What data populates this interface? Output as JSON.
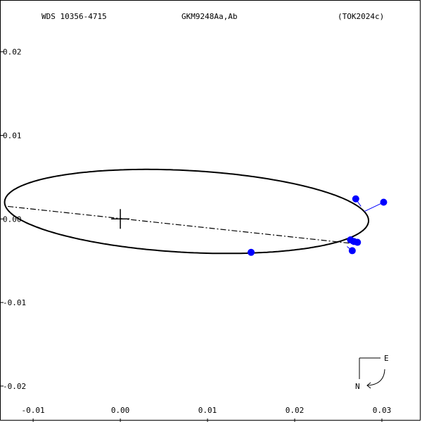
{
  "header": {
    "left": "WDS 10356-4715",
    "center": "GKM9248Aa,Ab",
    "right": "(TOK2024c)"
  },
  "compass": {
    "east_label": "E",
    "north_label": "N"
  },
  "chart_data": {
    "type": "scatter",
    "title": "",
    "xlabel": "",
    "ylabel": "",
    "x_axis_reversed": false,
    "xlim": [
      -0.0138,
      0.0346
    ],
    "ylim": [
      -0.0243,
      0.0262
    ],
    "x_ticks": [
      {
        "value": -0.01,
        "label": "-0.01"
      },
      {
        "value": 0.0,
        "label": "0.00"
      },
      {
        "value": 0.01,
        "label": "0.01"
      },
      {
        "value": 0.02,
        "label": "0.02"
      },
      {
        "value": 0.03,
        "label": "0.03"
      }
    ],
    "y_ticks": [
      {
        "value": 0.02,
        "label": "0.02"
      },
      {
        "value": 0.01,
        "label": "0.01"
      },
      {
        "value": 0.0,
        "label": "0.00"
      },
      {
        "value": -0.01,
        "label": "-0.01"
      },
      {
        "value": -0.02,
        "label": "-0.02"
      }
    ],
    "primary_star": [
      0.0,
      0.0
    ],
    "orbit": {
      "center": [
        0.0076,
        0.0009
      ],
      "semi_axis_major": 0.0209,
      "semi_axis_minor": 0.0049,
      "rotation_deg": -3.2,
      "color": "#000000"
    },
    "line_of_nodes": [
      [
        -0.0129,
        0.0015
      ],
      [
        0.0272,
        -0.003
      ]
    ],
    "observations": [
      {
        "x": 0.027,
        "y": 0.0024,
        "fit": [
          0.0276,
          0.0015
        ]
      },
      {
        "x": 0.0302,
        "y": 0.002,
        "fit": [
          0.028,
          0.0009
        ]
      },
      {
        "x": 0.015,
        "y": -0.004,
        "fit": [
          0.015,
          -0.004
        ]
      },
      {
        "x": 0.0264,
        "y": -0.0025,
        "fit": [
          0.0265,
          -0.003
        ]
      },
      {
        "x": 0.0268,
        "y": -0.0027,
        "fit": [
          0.0266,
          -0.003
        ]
      },
      {
        "x": 0.0272,
        "y": -0.0028,
        "fit": [
          0.0269,
          -0.003
        ]
      },
      {
        "x": 0.0266,
        "y": -0.0038,
        "fit": [
          0.026,
          -0.0033
        ]
      }
    ],
    "marker_color": "#0000ff",
    "grid": false
  }
}
